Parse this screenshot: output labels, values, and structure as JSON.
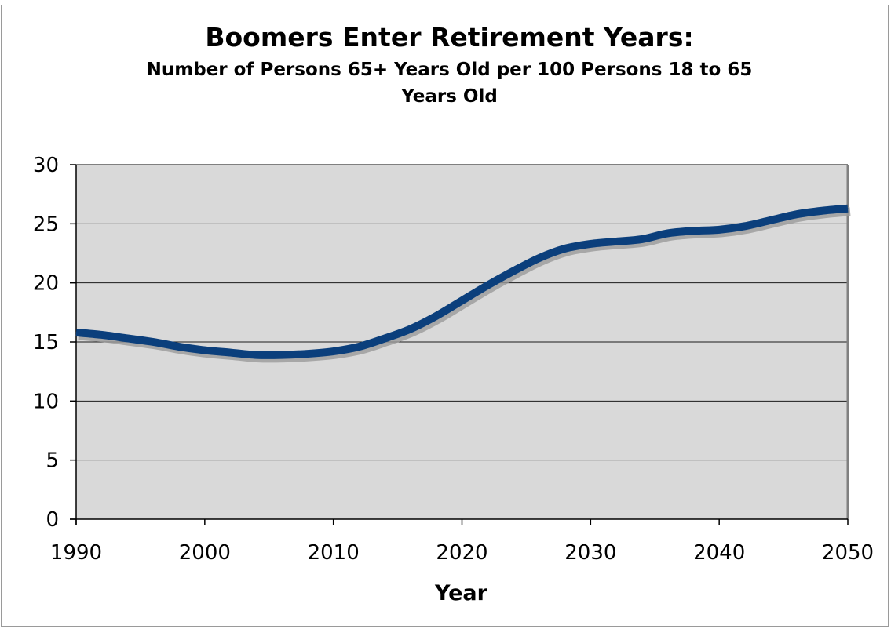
{
  "chart_data": {
    "type": "line",
    "title": "Boomers Enter Retirement Years:",
    "subtitle": "Number of Persons 65+ Years Old per 100 Persons 18 to 65 Years Old",
    "xlabel": "Year",
    "ylabel": "",
    "xlim": [
      1990,
      2050
    ],
    "ylim": [
      0,
      30
    ],
    "x_ticks": [
      1990,
      2000,
      2010,
      2020,
      2030,
      2040,
      2050
    ],
    "y_ticks": [
      0,
      5,
      10,
      15,
      20,
      25,
      30
    ],
    "grid": "horizontal",
    "legend": "none",
    "colors": {
      "line": "#0b3f7c",
      "line_shadow": "#9a9a9a",
      "plot_bg": "#d9d9d9",
      "grid": "#1a1a1a"
    },
    "series": [
      {
        "x": [
          1990,
          1992,
          1994,
          1996,
          1998,
          2000,
          2002,
          2004,
          2006,
          2008,
          2010,
          2012,
          2014,
          2016,
          2018,
          2020,
          2022,
          2024,
          2026,
          2028,
          2030,
          2032,
          2034,
          2036,
          2038,
          2040,
          2042,
          2044,
          2046,
          2048,
          2050
        ],
        "y": [
          15.8,
          15.6,
          15.3,
          15.0,
          14.6,
          14.3,
          14.1,
          13.9,
          13.9,
          14.0,
          14.2,
          14.6,
          15.3,
          16.1,
          17.2,
          18.5,
          19.8,
          21.0,
          22.1,
          22.9,
          23.3,
          23.5,
          23.7,
          24.2,
          24.4,
          24.5,
          24.8,
          25.3,
          25.8,
          26.1,
          26.3
        ]
      }
    ]
  }
}
